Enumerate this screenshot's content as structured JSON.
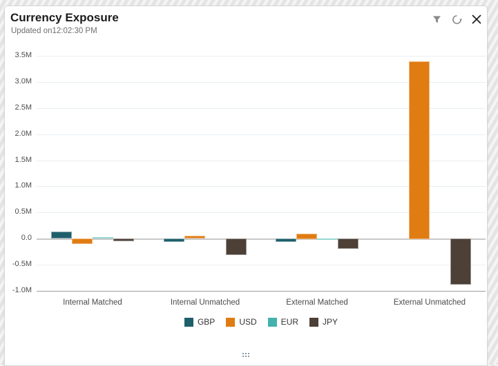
{
  "header": {
    "title": "Currency Exposure",
    "updated_label": "Updated on",
    "updated_time": "12:02:30 PM"
  },
  "icons": {
    "filter": "funnel-filter-icon",
    "refresh": "refresh-icon",
    "close": "close-icon"
  },
  "colors": {
    "gbp": "#1F5F6B",
    "usd": "#E07C12",
    "eur": "#43B2AC",
    "jpy": "#4C4037",
    "icon_gray": "#8A8A8A",
    "close_dark": "#1A1A1A",
    "grid": "#E8EEF2",
    "zero_line": "#C9C9C9",
    "axis_line": "#9C9C9C",
    "axis_text": "#4C4C4C"
  },
  "chart_data": {
    "type": "bar",
    "title": "Currency Exposure",
    "categories": [
      "Internal Matched",
      "Internal Unmatched",
      "External Matched",
      "External Unmatched"
    ],
    "series": [
      {
        "name": "GBP",
        "color": "#1F5F6B",
        "values": [
          130000,
          -60000,
          -60000,
          0
        ]
      },
      {
        "name": "USD",
        "color": "#E07C12",
        "values": [
          -110000,
          50000,
          100000,
          3400000
        ]
      },
      {
        "name": "EUR",
        "color": "#43B2AC",
        "values": [
          30000,
          0,
          -30000,
          0
        ]
      },
      {
        "name": "JPY",
        "color": "#4C4037",
        "values": [
          -50000,
          -320000,
          -200000,
          -880000
        ]
      }
    ],
    "ylim": [
      -1000000,
      3500000
    ],
    "y_ticks": [
      {
        "v": 3500000,
        "label": "3.5M"
      },
      {
        "v": 3000000,
        "label": "3.0M"
      },
      {
        "v": 2500000,
        "label": "2.5M"
      },
      {
        "v": 2000000,
        "label": "2.0M"
      },
      {
        "v": 1500000,
        "label": "1.5M"
      },
      {
        "v": 1000000,
        "label": "1.0M"
      },
      {
        "v": 500000,
        "label": "0.5M"
      },
      {
        "v": 0,
        "label": "0.0"
      },
      {
        "v": -500000,
        "label": "-0.5M"
      },
      {
        "v": -1000000,
        "label": "-1.0M"
      }
    ],
    "grid": true,
    "legend_position": "bottom"
  }
}
